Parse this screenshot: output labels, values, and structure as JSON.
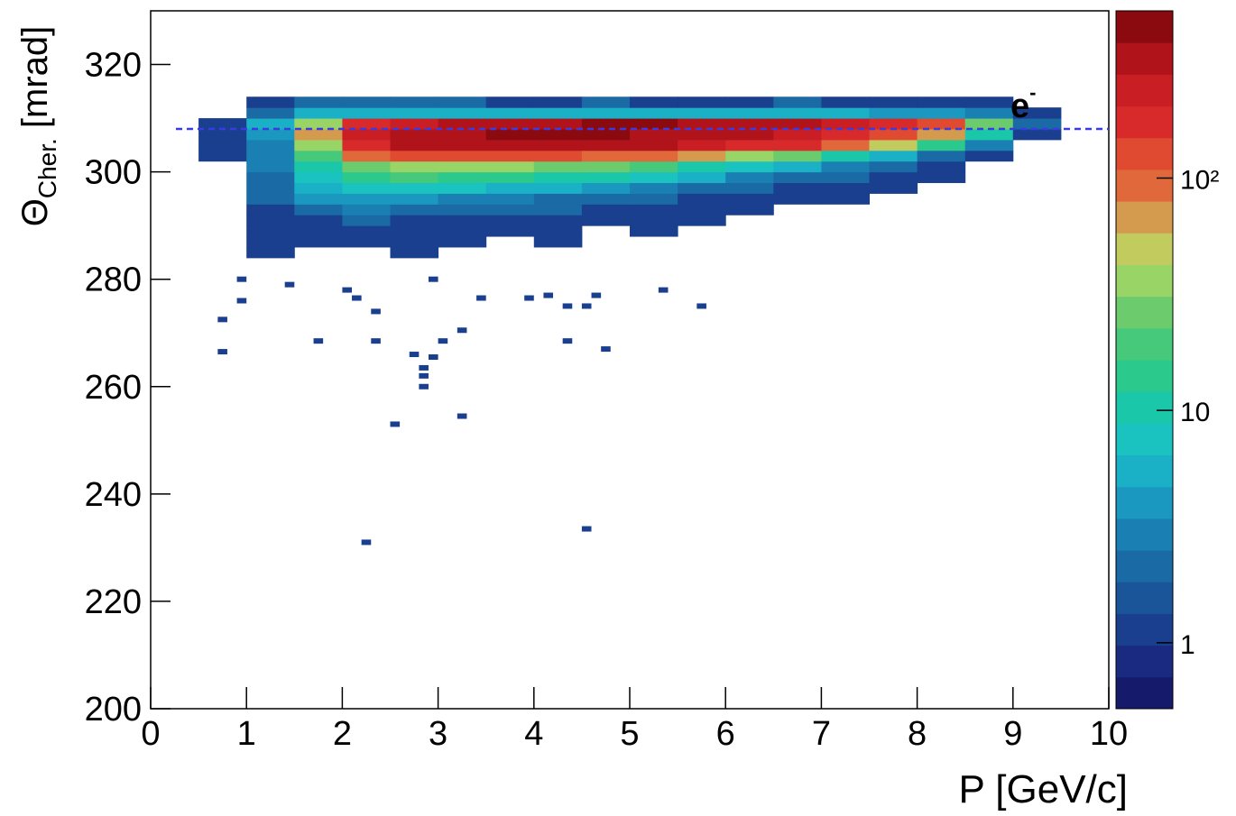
{
  "chart_data": {
    "type": "heatmap",
    "x_label": "P [GeV/c]",
    "y_label": {
      "main": "Θ",
      "sub": "Cher.",
      "rest": " [mrad]"
    },
    "annotation": {
      "text": "e",
      "superscript": "-"
    },
    "reference_line": {
      "y": 308,
      "color": "#3b3be6"
    },
    "xlim": [
      0,
      10
    ],
    "xticks": [
      0,
      1,
      2,
      3,
      4,
      5,
      6,
      7,
      8,
      9,
      10
    ],
    "ylim": [
      200,
      330
    ],
    "yticks": [
      200,
      220,
      240,
      260,
      280,
      300,
      320
    ],
    "zlim": [
      0.52,
      525
    ],
    "zticks": [
      1,
      10,
      {
        "value": 100,
        "label": "10²"
      }
    ],
    "log_z": true,
    "palette": [
      "#161a6a",
      "#1a2a80",
      "#1a3f8f",
      "#1a5599",
      "#1a6aa6",
      "#1a80b3",
      "#1a98c0",
      "#1ab0c6",
      "#1ac2c0",
      "#1ac7a8",
      "#2cc98c",
      "#46c97a",
      "#6ccb6c",
      "#98d466",
      "#c2cc5e",
      "#d49a4e",
      "#e0683a",
      "#e04a30",
      "#d82a2a",
      "#c81e24",
      "#b0141a",
      "#8a0a10"
    ],
    "x_bins": [
      0.5,
      1,
      1.5,
      2,
      2.5,
      3,
      3.5,
      4,
      4.5,
      5,
      5.5,
      6,
      6.5,
      7,
      7.5,
      8,
      8.5,
      9,
      9.5
    ],
    "y_bins": [
      284,
      286,
      288,
      290,
      292,
      294,
      296,
      298,
      300,
      302,
      304,
      306,
      308,
      310,
      312,
      314
    ],
    "z": [
      [
        0,
        1,
        0,
        0,
        1,
        0,
        0,
        0,
        0,
        0,
        0,
        0,
        0,
        0,
        0,
        0,
        0,
        0
      ],
      [
        0,
        1,
        1,
        1,
        1,
        1,
        0,
        1,
        0,
        0,
        0,
        0,
        0,
        0,
        0,
        0,
        0,
        0
      ],
      [
        0,
        1,
        1,
        1,
        1,
        1,
        1,
        1,
        0,
        1,
        0,
        0,
        0,
        0,
        0,
        0,
        0,
        0
      ],
      [
        0,
        1,
        1,
        2,
        1,
        1,
        1,
        1,
        1,
        1,
        1,
        0,
        0,
        0,
        0,
        0,
        0,
        0
      ],
      [
        0,
        1,
        2,
        3,
        2,
        2,
        2,
        2,
        1,
        1,
        1,
        1,
        0,
        0,
        0,
        0,
        0,
        0
      ],
      [
        0,
        2,
        4,
        4,
        4,
        3,
        3,
        2,
        2,
        2,
        1,
        1,
        1,
        1,
        0,
        0,
        0,
        0
      ],
      [
        0,
        2,
        6,
        8,
        8,
        7,
        6,
        5,
        4,
        3,
        2,
        2,
        1,
        1,
        1,
        0,
        0,
        0
      ],
      [
        0,
        2,
        8,
        15,
        18,
        16,
        14,
        12,
        10,
        7,
        5,
        3,
        2,
        2,
        1,
        1,
        0,
        0
      ],
      [
        0,
        3,
        12,
        30,
        40,
        40,
        35,
        30,
        25,
        18,
        12,
        8,
        5,
        3,
        2,
        1,
        0,
        0
      ],
      [
        1,
        3,
        20,
        80,
        120,
        130,
        130,
        120,
        100,
        80,
        60,
        40,
        25,
        12,
        5,
        2,
        1,
        0
      ],
      [
        1,
        3,
        40,
        200,
        300,
        330,
        330,
        320,
        300,
        280,
        240,
        200,
        150,
        100,
        50,
        15,
        3,
        0
      ],
      [
        1,
        4,
        60,
        250,
        350,
        380,
        400,
        400,
        400,
        380,
        350,
        300,
        250,
        180,
        120,
        60,
        10,
        1
      ],
      [
        1,
        5,
        40,
        150,
        250,
        300,
        350,
        380,
        400,
        400,
        380,
        350,
        300,
        250,
        200,
        120,
        30,
        2
      ],
      [
        0,
        2,
        5,
        6,
        6,
        6,
        6,
        6,
        6,
        6,
        5,
        5,
        5,
        5,
        4,
        4,
        3,
        1
      ],
      [
        0,
        1,
        2,
        2,
        2,
        2,
        1,
        1,
        2,
        1,
        1,
        1,
        2,
        1,
        1,
        1,
        1,
        0
      ]
    ],
    "outliers": {
      "x": [
        0.75,
        0.75,
        2.25,
        4.55,
        2.55,
        3.25,
        2.85,
        2.85,
        2.85,
        2.75,
        2.95,
        3.05,
        3.25,
        1.75,
        2.35,
        4.35,
        4.75,
        0.95,
        2.15,
        2.35,
        5.75,
        4.35,
        3.45,
        3.95,
        4.55,
        0.95,
        1.45,
        2.05,
        2.95,
        4.15,
        4.65,
        5.35
      ],
      "y": [
        272.5,
        266.5,
        231,
        233.5,
        253,
        254.5,
        263.5,
        262,
        260,
        266,
        265.5,
        268.5,
        270.5,
        268.5,
        268.5,
        268.5,
        267,
        276,
        276.5,
        274,
        275,
        275,
        276.5,
        276.5,
        275,
        280,
        279,
        278,
        280,
        277,
        277,
        278
      ]
    }
  }
}
